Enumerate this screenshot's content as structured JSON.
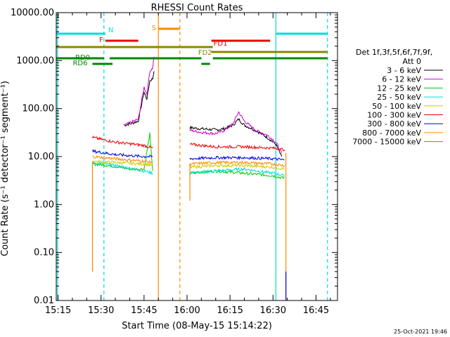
{
  "chart_data": {
    "type": "line",
    "title": "RHESSI Count Rates",
    "xlabel": "Start Time (08-May-15 15:14:22)",
    "ylabel": "Count Rate (s⁻¹ detector⁻¹ segment⁻¹)",
    "x_ticks": [
      "15:15",
      "15:30",
      "15:45",
      "16:00",
      "16:15",
      "16:30",
      "16:45"
    ],
    "y_ticks": [
      "0.01",
      "0.10",
      "1.00",
      "10.00",
      "100.00",
      "1000.00",
      "10000.00"
    ],
    "y_scale": "log",
    "xlim": [
      "15:14:22",
      "16:52:30"
    ],
    "ylim": [
      0.01,
      10000
    ],
    "legend_header": "Det 1f,3f,5f,6f,7f,9f,",
    "legend_att": "Att 0",
    "legend_position": "right",
    "timestamp": "25-Oct-2021 19:46",
    "series": [
      {
        "name": "3 - 6 keV",
        "color": "#000000",
        "segments": [
          {
            "t": [
              "15:38",
              "15:40",
              "15:43",
              "15:45",
              "15:46",
              "15:47",
              "15:48",
              "15:48.5"
            ],
            "v": [
              45,
              48,
              55,
              220,
              160,
              380,
              420,
              600
            ]
          },
          {
            "t": [
              "16:01",
              "16:05",
              "16:10",
              "16:13",
              "16:16",
              "16:18",
              "16:20",
              "16:24",
              "16:28",
              "16:31",
              "16:33"
            ],
            "v": [
              40,
              38,
              36,
              38,
              45,
              60,
              45,
              35,
              25,
              18,
              10
            ]
          }
        ]
      },
      {
        "name": "6 - 12 keV",
        "color": "#d000d0",
        "segments": [
          {
            "t": [
              "15:38",
              "15:40",
              "15:43",
              "15:45",
              "15:46",
              "15:47",
              "15:48",
              "15:48.5"
            ],
            "v": [
              45,
              50,
              60,
              280,
              200,
              600,
              700,
              1200
            ]
          },
          {
            "t": [
              "16:01",
              "16:05",
              "16:10",
              "16:13",
              "16:16",
              "16:18",
              "16:20",
              "16:24",
              "16:28",
              "16:31",
              "16:33"
            ],
            "v": [
              35,
              32,
              30,
              35,
              48,
              85,
              55,
              35,
              28,
              20,
              12
            ]
          }
        ]
      },
      {
        "name": "12 - 25 keV",
        "color": "#00cc00",
        "segments": [
          {
            "t": [
              "15:27",
              "15:33",
              "15:40",
              "15:45",
              "15:47",
              "15:48"
            ],
            "v": [
              7,
              6.5,
              5.5,
              5.5,
              30,
              5
            ]
          },
          {
            "t": [
              "16:01",
              "16:10",
              "16:20",
              "16:30",
              "16:34"
            ],
            "v": [
              4.5,
              5,
              4.5,
              4,
              3.5
            ]
          }
        ]
      },
      {
        "name": "25 - 50 keV",
        "color": "#00dddd",
        "segments": [
          {
            "t": [
              "15:27",
              "15:35",
              "15:45",
              "15:48"
            ],
            "v": [
              7.5,
              6.5,
              5,
              4.5
            ]
          },
          {
            "t": [
              "16:01",
              "16:10",
              "16:20",
              "16:30",
              "16:34"
            ],
            "v": [
              4.5,
              5,
              5.5,
              4.5,
              4
            ]
          }
        ]
      },
      {
        "name": "50 - 100 keV",
        "color": "#cccc00",
        "segments": [
          {
            "t": [
              "15:27",
              "15:35",
              "15:45",
              "15:48"
            ],
            "v": [
              8,
              7.5,
              7,
              6.5
            ]
          },
          {
            "t": [
              "16:01",
              "16:10",
              "16:20",
              "16:30",
              "16:34"
            ],
            "v": [
              6,
              6.5,
              6.5,
              6,
              5.5
            ]
          }
        ]
      },
      {
        "name": "100 - 300 keV",
        "color": "#ee0000",
        "segments": [
          {
            "t": [
              "15:27",
              "15:35",
              "15:45",
              "15:48"
            ],
            "v": [
              25,
              20,
              17,
              15
            ]
          },
          {
            "t": [
              "16:01",
              "16:10",
              "16:20",
              "16:30",
              "16:34"
            ],
            "v": [
              18,
              16,
              16,
              15,
              14
            ]
          }
        ]
      },
      {
        "name": "300 - 800 keV",
        "color": "#0000ee",
        "segments": [
          {
            "t": [
              "15:27",
              "15:35",
              "15:45",
              "15:48"
            ],
            "v": [
              13,
              11,
              10,
              10
            ]
          },
          {
            "t": [
              "16:01",
              "16:10",
              "16:20",
              "16:30",
              "16:34"
            ],
            "v": [
              9,
              9.5,
              9.5,
              9,
              8.5
            ]
          }
        ]
      },
      {
        "name": "800 - 7000 keV",
        "color": "#ff8800",
        "segments": [
          {
            "t": [
              "15:27",
              "15:35",
              "15:45",
              "15:48"
            ],
            "v": [
              10,
              9,
              8,
              7.5
            ]
          },
          {
            "t": [
              "16:01",
              "16:10",
              "16:20",
              "16:30",
              "16:34"
            ],
            "v": [
              7,
              7.5,
              7.5,
              7,
              6.5
            ]
          }
        ]
      },
      {
        "name": "7000 - 15000 keV",
        "color": "#888800",
        "segments": []
      }
    ],
    "flag_bars": [
      {
        "label": "N",
        "color": "#00dddd",
        "row": 0,
        "from": "15:14:22",
        "to": "15:31:30"
      },
      {
        "label": "",
        "color": "#00dddd",
        "row": 0,
        "from": "16:31:00",
        "to": "16:49:00"
      },
      {
        "label": "S",
        "color": "#ff8800",
        "row": -1,
        "from": "15:50:00",
        "to": "15:57:30"
      },
      {
        "label": "F",
        "color": "#ee0000",
        "row": 1,
        "from": "15:31:30",
        "to": "15:43:00"
      },
      {
        "label": "FD1",
        "color": "#ee0000",
        "row": 1,
        "from": "16:08:30",
        "to": "16:29:00"
      },
      {
        "label": "",
        "color": "#888800",
        "row": 2,
        "from": "15:14:22",
        "to": "16:09:00"
      },
      {
        "label": "FD2",
        "color": "#888800",
        "row": 3,
        "from": "16:08:30",
        "to": "16:49:00"
      },
      {
        "label": "RD0",
        "color": "#008800",
        "row": 4,
        "from": "15:14:22",
        "to": "15:31:00"
      },
      {
        "label": "",
        "color": "#008800",
        "row": 4,
        "from": "15:33:00",
        "to": "16:05:00"
      },
      {
        "label": "",
        "color": "#008800",
        "row": 4,
        "from": "16:09:00",
        "to": "16:49:00"
      },
      {
        "label": "RD6",
        "color": "#008800",
        "row": 5,
        "from": "15:27:00",
        "to": "15:34:00"
      },
      {
        "label": "",
        "color": "#008800",
        "row": 5,
        "from": "16:05:00",
        "to": "16:08:00"
      }
    ],
    "vertical_lines": [
      {
        "t": "15:14:50",
        "color": "#00dddd",
        "style": "solid"
      },
      {
        "t": "15:31:00",
        "color": "#00dddd",
        "style": "dashed"
      },
      {
        "t": "15:50:00",
        "color": "#ff8800",
        "style": "solid"
      },
      {
        "t": "15:57:30",
        "color": "#ff8800",
        "style": "dashed"
      },
      {
        "t": "16:31:00",
        "color": "#00dddd",
        "style": "solid"
      },
      {
        "t": "16:49:00",
        "color": "#00dddd",
        "style": "dashed"
      }
    ],
    "spikes": [
      {
        "t": "15:27:00",
        "color": "#ff8800",
        "from": 0.04,
        "to": 8
      },
      {
        "t": "16:01:00",
        "color": "#ff8800",
        "from": 1.2,
        "to": 7
      },
      {
        "t": "16:34:30",
        "color": "#ff8800",
        "from": 0.01,
        "to": 12
      },
      {
        "t": "16:34:30",
        "color": "#0000ee",
        "from": 0.01,
        "to": 0.04
      }
    ]
  }
}
